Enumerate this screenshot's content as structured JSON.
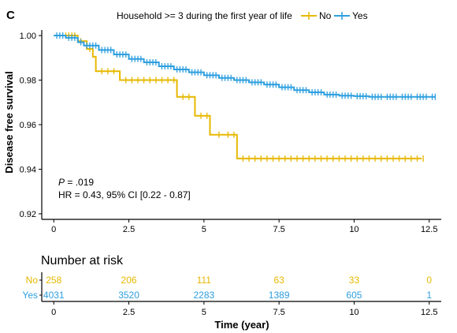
{
  "panel_label": "C",
  "legend": {
    "title": "Household >= 3 during the first year of life",
    "items": [
      {
        "label": "No",
        "color": "#E7B800"
      },
      {
        "label": "Yes",
        "color": "#2E9FDF"
      }
    ]
  },
  "annotation": {
    "p_label": "P",
    "p_value": " =  .019",
    "hr_text": "HR = 0.43, 95% CI [0.22 - 0.87]"
  },
  "chart_data": {
    "type": "line",
    "title": "",
    "xlabel": "Time (year)",
    "ylabel": "Disease free survival",
    "xlim": [
      -0.4,
      12.9
    ],
    "ylim": [
      0.9175,
      1.0025
    ],
    "xticks": [
      0,
      2.5,
      5,
      7.5,
      10,
      12.5
    ],
    "xtick_labels": [
      "0",
      "2.5",
      "5",
      "7.5",
      "10",
      "12.5"
    ],
    "yticks": [
      0.92,
      0.94,
      0.96,
      0.98,
      1.0
    ],
    "ytick_labels": [
      "0.92",
      "0.94",
      "0.96",
      "0.98",
      "1.00"
    ],
    "grid": false,
    "legend_position": "top",
    "series": [
      {
        "name": "No",
        "color": "#E7B800",
        "step": [
          [
            0.0,
            1.0
          ],
          [
            0.8,
            1.0
          ],
          [
            0.8,
            0.9975
          ],
          [
            1.1,
            0.9975
          ],
          [
            1.1,
            0.994
          ],
          [
            1.3,
            0.994
          ],
          [
            1.3,
            0.9905
          ],
          [
            1.4,
            0.9905
          ],
          [
            1.4,
            0.984
          ],
          [
            2.2,
            0.984
          ],
          [
            2.2,
            0.98
          ],
          [
            4.1,
            0.98
          ],
          [
            4.1,
            0.9725
          ],
          [
            4.7,
            0.9725
          ],
          [
            4.7,
            0.964
          ],
          [
            5.2,
            0.964
          ],
          [
            5.2,
            0.9555
          ],
          [
            6.1,
            0.9555
          ],
          [
            6.1,
            0.9448
          ],
          [
            12.25,
            0.9448
          ]
        ],
        "censor_times": [
          0.4,
          0.5,
          0.6,
          0.7,
          0.9,
          1.2,
          1.6,
          1.8,
          2.0,
          2.4,
          2.6,
          2.8,
          3.0,
          3.2,
          3.4,
          3.6,
          3.8,
          4.0,
          4.3,
          4.5,
          4.9,
          5.1,
          5.5,
          5.8,
          6.0,
          6.3,
          6.5,
          6.7,
          6.9,
          7.1,
          7.3,
          7.5,
          7.7,
          7.9,
          8.1,
          8.3,
          8.5,
          8.7,
          8.9,
          9.1,
          9.3,
          9.5,
          9.7,
          9.9,
          10.1,
          10.3,
          10.5,
          10.7,
          10.9,
          11.1,
          11.3,
          11.5,
          11.7,
          11.9,
          12.1,
          12.3
        ]
      },
      {
        "name": "Yes",
        "color": "#2E9FDF",
        "step": [
          [
            0.0,
            1.0
          ],
          [
            0.4,
            0.999
          ],
          [
            0.8,
            0.997
          ],
          [
            1.0,
            0.9955
          ],
          [
            1.5,
            0.9935
          ],
          [
            2.0,
            0.9915
          ],
          [
            2.5,
            0.9895
          ],
          [
            3.0,
            0.988
          ],
          [
            3.5,
            0.9862
          ],
          [
            4.0,
            0.9848
          ],
          [
            4.5,
            0.9835
          ],
          [
            5.0,
            0.9822
          ],
          [
            5.5,
            0.981
          ],
          [
            6.0,
            0.98
          ],
          [
            6.5,
            0.979
          ],
          [
            7.0,
            0.978
          ],
          [
            7.5,
            0.9768
          ],
          [
            8.0,
            0.9755
          ],
          [
            8.5,
            0.9745
          ],
          [
            9.0,
            0.9735
          ],
          [
            9.5,
            0.973
          ],
          [
            10.0,
            0.9728
          ],
          [
            10.5,
            0.9725
          ],
          [
            12.7,
            0.9725
          ]
        ],
        "censor_times": [
          0.1,
          0.2,
          0.3,
          0.5,
          0.6,
          0.7,
          0.9,
          1.1,
          1.2,
          1.3,
          1.4,
          1.6,
          1.7,
          1.8,
          1.9,
          2.1,
          2.2,
          2.3,
          2.4,
          2.6,
          2.7,
          2.8,
          2.9,
          3.1,
          3.2,
          3.3,
          3.4,
          3.6,
          3.7,
          3.8,
          3.9,
          4.1,
          4.2,
          4.3,
          4.4,
          4.6,
          4.7,
          4.8,
          4.9,
          5.1,
          5.2,
          5.3,
          5.4,
          5.6,
          5.7,
          5.8,
          5.9,
          6.1,
          6.2,
          6.3,
          6.4,
          6.6,
          6.7,
          6.8,
          6.9,
          7.1,
          7.2,
          7.3,
          7.4,
          7.6,
          7.7,
          7.8,
          7.9,
          8.1,
          8.2,
          8.3,
          8.4,
          8.6,
          8.7,
          8.8,
          8.9,
          9.1,
          9.2,
          9.3,
          9.4,
          9.6,
          9.7,
          9.8,
          9.9,
          10.1,
          10.2,
          10.3,
          10.4,
          10.6,
          10.7,
          10.8,
          10.9,
          11.1,
          11.2,
          11.3,
          11.4,
          11.6,
          11.7,
          11.8,
          11.9,
          12.1,
          12.2,
          12.3,
          12.4,
          12.6,
          12.7
        ]
      }
    ]
  },
  "risk_table": {
    "title": "Number at risk",
    "times": [
      0,
      2.5,
      5,
      7.5,
      10,
      12.5
    ],
    "rows": [
      {
        "label": "No",
        "color": "#E7B800",
        "values": [
          "258",
          "206",
          "111",
          "63",
          "33",
          "0"
        ]
      },
      {
        "label": "Yes",
        "color": "#2E9FDF",
        "values": [
          "4031",
          "3520",
          "2283",
          "1389",
          "605",
          "1"
        ]
      }
    ],
    "xtick_labels": [
      "0",
      "2.5",
      "5",
      "7.5",
      "10",
      "12.5"
    ],
    "xlabel": "Time (year)"
  }
}
